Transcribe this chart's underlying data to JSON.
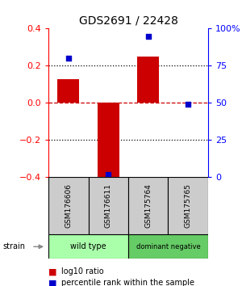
{
  "title": "GDS2691 / 22428",
  "samples": [
    "GSM176606",
    "GSM176611",
    "GSM175764",
    "GSM175765"
  ],
  "log10_ratio": [
    0.13,
    -0.4,
    0.25,
    0.0
  ],
  "percentile_rank": [
    80,
    2,
    95,
    49
  ],
  "groups": [
    {
      "label": "wild type",
      "color": "#aaffaa",
      "samples": [
        0,
        1
      ]
    },
    {
      "label": "dominant negative",
      "color": "#66cc66",
      "samples": [
        2,
        3
      ]
    }
  ],
  "group_row_label": "strain",
  "ylim": [
    -0.4,
    0.4
  ],
  "y2lim": [
    0,
    100
  ],
  "yticks": [
    -0.4,
    -0.2,
    0.0,
    0.2,
    0.4
  ],
  "y2ticks": [
    0,
    25,
    50,
    75,
    100
  ],
  "y2ticklabels": [
    "0",
    "25",
    "50",
    "75",
    "100%"
  ],
  "bar_color": "#cc0000",
  "dot_color": "#0000cc",
  "legend_bar_label": "log10 ratio",
  "legend_dot_label": "percentile rank within the sample",
  "sample_box_color": "#cccccc",
  "background_color": "#ffffff"
}
